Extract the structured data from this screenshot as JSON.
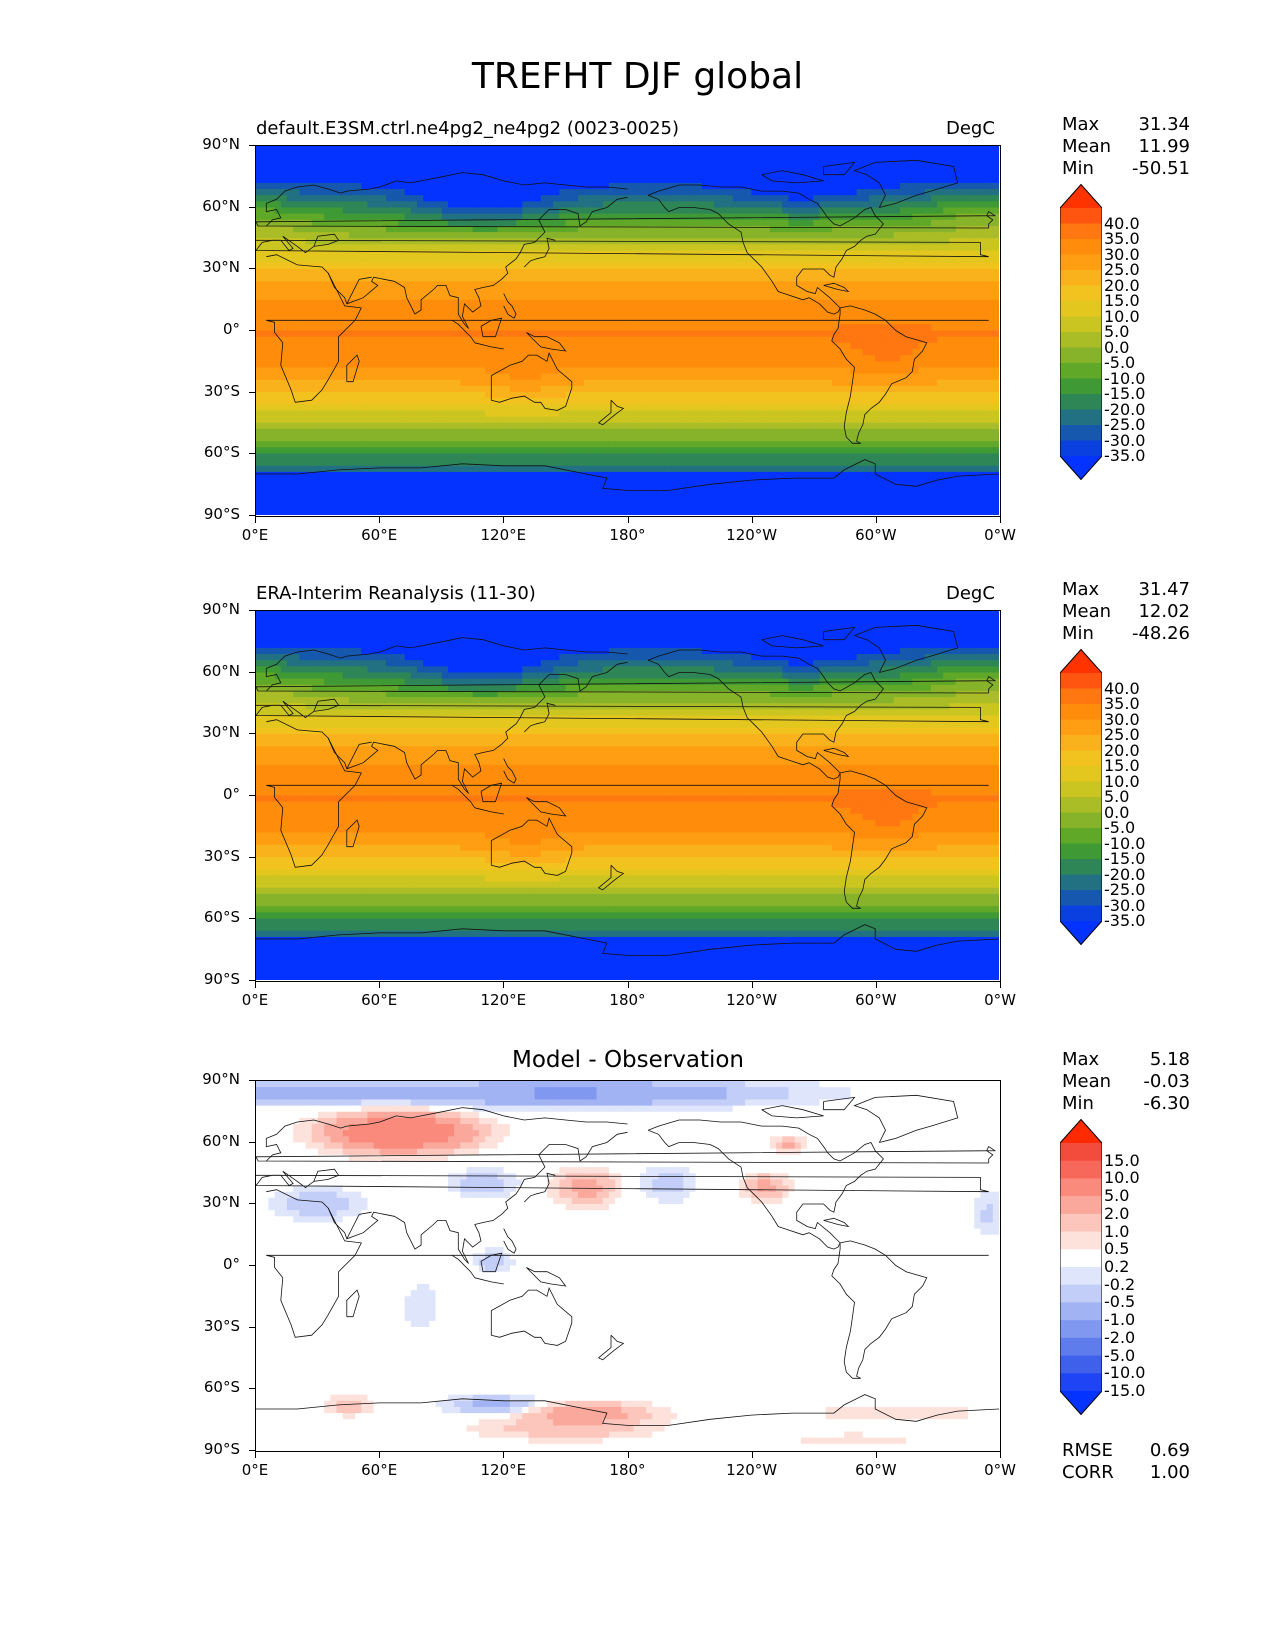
{
  "title": "TREFHT DJF global",
  "lat_labels": [
    "90°N",
    "60°N",
    "30°N",
    "0°",
    "30°S",
    "60°S",
    "90°S"
  ],
  "lon_labels": [
    "0°E",
    "60°E",
    "120°E",
    "180°",
    "120°W",
    "60°W",
    "0°W"
  ],
  "panels": [
    {
      "title_left": "default.E3SM.ctrl.ne4pg2_ne4pg2 (0023-0025)",
      "units": "DegC",
      "stats": {
        "max_label": "Max",
        "max": "31.34",
        "mean_label": "Mean",
        "mean": "11.99",
        "min_label": "Min",
        "min": "-50.51"
      }
    },
    {
      "title_left": "ERA-Interim Reanalysis (11-30)",
      "units": "DegC",
      "stats": {
        "max_label": "Max",
        "max": "31.47",
        "mean_label": "Mean",
        "mean": "12.02",
        "min_label": "Min",
        "min": "-48.26"
      }
    },
    {
      "title_center": "Model - Observation",
      "stats": {
        "max_label": "Max",
        "max": "5.18",
        "mean_label": "Mean",
        "mean": "-0.03",
        "min_label": "Min",
        "min": "-6.30"
      }
    }
  ],
  "colorbar_abs": {
    "levels": [
      "40.0",
      "35.0",
      "30.0",
      "25.0",
      "20.0",
      "15.0",
      "10.0",
      "5.0",
      "0.0",
      "-5.0",
      "-10.0",
      "-15.0",
      "-20.0",
      "-25.0",
      "-30.0",
      "-35.0"
    ],
    "colors": [
      "#ff3300",
      "#ff5511",
      "#ff7711",
      "#ff8c0a",
      "#ff9e12",
      "#f9b21c",
      "#f2c31e",
      "#e3c71f",
      "#cbc521",
      "#aabd27",
      "#86b329",
      "#5fa828",
      "#3f9a35",
      "#2e8657",
      "#217182",
      "#1558ad",
      "#0a40e0",
      "#0433ff"
    ]
  },
  "colorbar_diff": {
    "levels": [
      "15.0",
      "10.0",
      "5.0",
      "2.0",
      "1.0",
      "0.5",
      "0.2",
      "-0.2",
      "-0.5",
      "-1.0",
      "-2.0",
      "-5.0",
      "-10.0",
      "-15.0"
    ],
    "colors": [
      "#ff2a00",
      "#f34b3c",
      "#f7685a",
      "#fa8a7c",
      "#fba89c",
      "#fcc6bc",
      "#fde2dc",
      "#ffffff",
      "#dfe5fb",
      "#c2cdf8",
      "#a2b3f4",
      "#8098f0",
      "#5e7cec",
      "#3e60eb",
      "#1f44f5",
      "#0433ff"
    ]
  },
  "metrics": {
    "rmse_label": "RMSE",
    "rmse": "0.69",
    "corr_label": "CORR",
    "corr": "1.00"
  }
}
